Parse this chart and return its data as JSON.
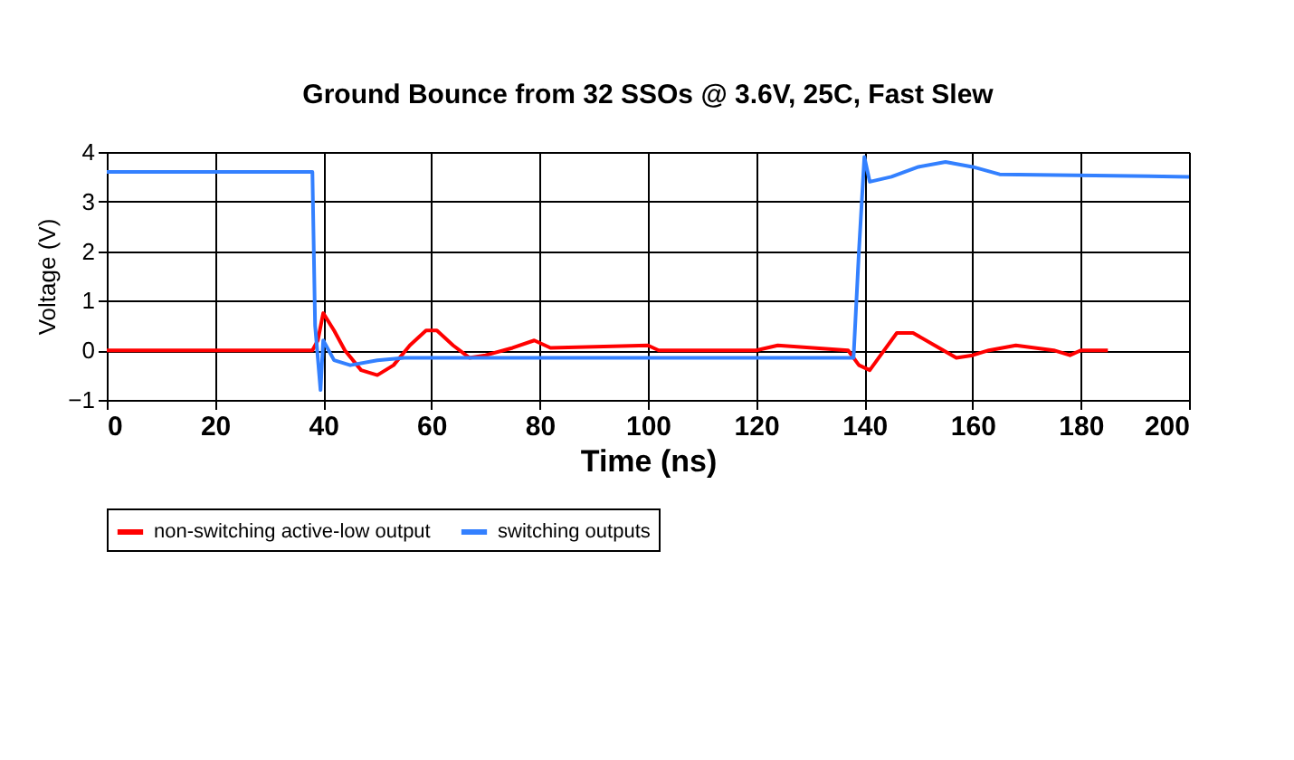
{
  "chart_data": {
    "type": "line",
    "title": "Ground Bounce from 32 SSOs @ 3.6V, 25C, Fast Slew",
    "xlabel": "Time (ns)",
    "ylabel": "Voltage (V)",
    "xlim": [
      0,
      200
    ],
    "xticks": [
      0,
      20,
      40,
      60,
      80,
      100,
      120,
      140,
      160,
      180,
      200
    ],
    "ylim": [
      -1,
      4
    ],
    "yticks": [
      -1,
      0,
      1,
      2,
      3,
      4
    ],
    "grid": true,
    "legend": "bottom",
    "marker": "none",
    "line_style": "solid",
    "series": [
      {
        "name": "non-switching active-low output",
        "color": "#ff0000",
        "x": [
          0,
          38,
          39,
          40,
          42,
          44,
          47,
          50,
          53,
          56,
          59,
          61,
          64,
          67,
          70,
          75,
          79,
          82,
          100,
          102,
          120,
          124,
          137,
          139,
          141,
          143,
          146,
          149,
          153,
          157,
          160,
          163,
          168,
          175,
          178,
          180,
          185
        ],
        "values": [
          0,
          0,
          0.2,
          0.75,
          0.4,
          0,
          -0.4,
          -0.5,
          -0.3,
          0.1,
          0.4,
          0.4,
          0.1,
          -0.15,
          -0.1,
          0.05,
          0.2,
          0.05,
          0.1,
          0,
          0,
          0.1,
          0,
          -0.3,
          -0.4,
          -0.1,
          0.35,
          0.35,
          0.1,
          -0.15,
          -0.1,
          0,
          0.1,
          0,
          -0.1,
          0,
          0
        ]
      },
      {
        "name": "switching outputs",
        "color": "#3380ff",
        "x": [
          0,
          38,
          38.5,
          39.5,
          40,
          42,
          45,
          50,
          55,
          138,
          139,
          140,
          141,
          145,
          150,
          155,
          160,
          165,
          200
        ],
        "values": [
          3.6,
          3.6,
          0.5,
          -0.8,
          0.2,
          -0.2,
          -0.3,
          -0.2,
          -0.15,
          -0.15,
          2.0,
          3.9,
          3.4,
          3.5,
          3.7,
          3.8,
          3.7,
          3.55,
          3.5
        ]
      }
    ]
  }
}
